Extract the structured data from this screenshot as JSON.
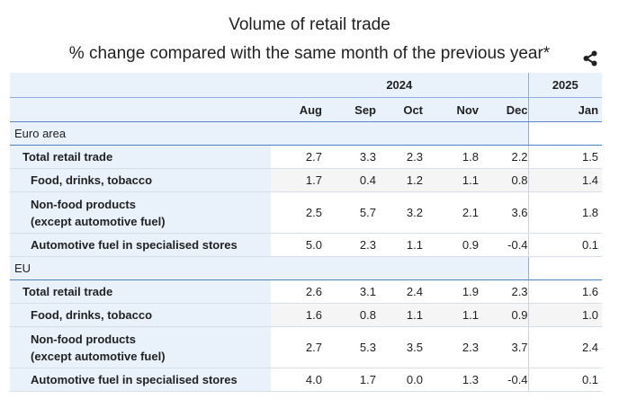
{
  "header": {
    "title": "Volume of retail trade",
    "subtitle": "% change compared with the same month of the previous year*",
    "share_icon": "share-icon"
  },
  "table": {
    "years": [
      "2024",
      "2025"
    ],
    "months": [
      "Aug",
      "Sep",
      "Oct",
      "Nov",
      "Dec",
      "Jan"
    ],
    "groups": [
      {
        "name": "Euro area",
        "rows": [
          {
            "label": "Total retail trade",
            "label2": "",
            "values": [
              "2.7",
              "3.3",
              "2.3",
              "1.8",
              "2.2",
              "1.5"
            ]
          },
          {
            "label": "Food, drinks, tobacco",
            "label2": "",
            "values": [
              "1.7",
              "0.4",
              "1.2",
              "1.1",
              "0.8",
              "1.4"
            ]
          },
          {
            "label": "Non-food products",
            "label2": "(except automotive fuel)",
            "values": [
              "2.5",
              "5.7",
              "3.2",
              "2.1",
              "3.6",
              "1.8"
            ]
          },
          {
            "label": "Automotive fuel in specialised stores",
            "label2": "",
            "values": [
              "5.0",
              "2.3",
              "1.1",
              "0.9",
              "-0.4",
              "0.1"
            ]
          }
        ]
      },
      {
        "name": "EU",
        "rows": [
          {
            "label": "Total retail trade",
            "label2": "",
            "values": [
              "2.6",
              "3.1",
              "2.4",
              "1.9",
              "2.3",
              "1.6"
            ]
          },
          {
            "label": "Food, drinks, tobacco",
            "label2": "",
            "values": [
              "1.6",
              "0.8",
              "1.1",
              "1.1",
              "0.9",
              "1.0"
            ]
          },
          {
            "label": "Non-food products",
            "label2": "(except automotive fuel)",
            "values": [
              "2.7",
              "5.3",
              "3.5",
              "2.3",
              "3.7",
              "2.4"
            ]
          },
          {
            "label": "Automotive fuel in specialised stores",
            "label2": "",
            "values": [
              "4.0",
              "1.7",
              "0.0",
              "1.3",
              "-0.4",
              "0.1"
            ]
          }
        ]
      }
    ]
  }
}
